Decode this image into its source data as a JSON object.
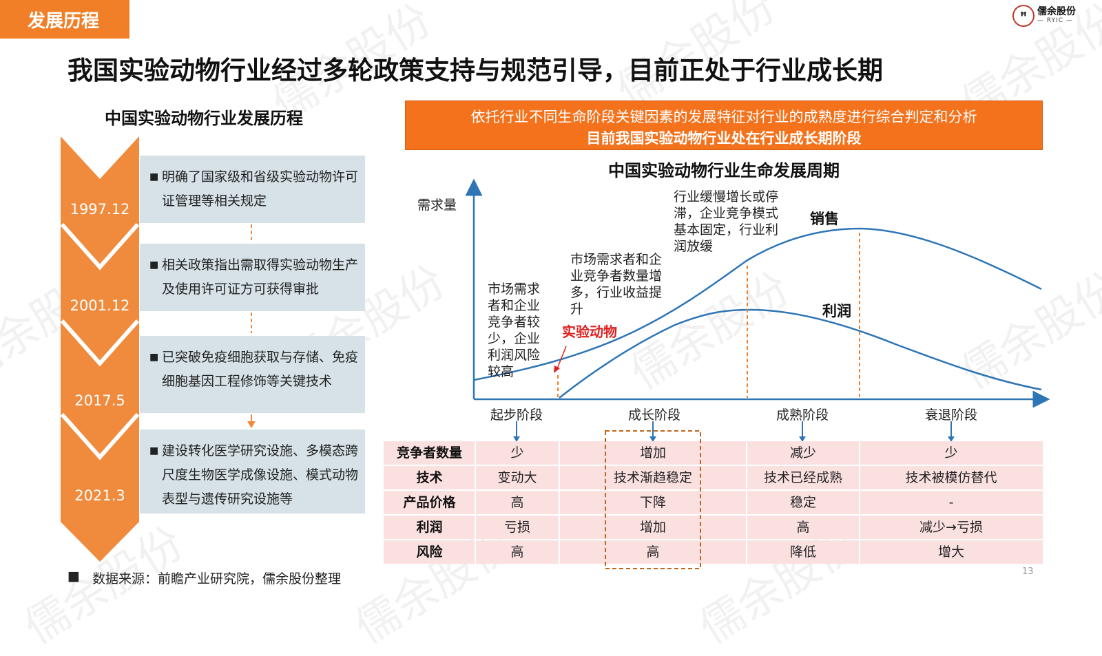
{
  "header": {
    "section_tag": "发展历程",
    "title": "我国实验动物行业经过多轮政策支持与规范引导，目前正处于行业成长期",
    "logo_name": "儒余股份",
    "logo_sub": "— RYIC —"
  },
  "watermark": "儒余股份",
  "timeline": {
    "title": "中国实验动物行业发展历程",
    "events": [
      {
        "date": "1997.12",
        "text": "明确了国家级和省级实验动物许可证管理等相关规定"
      },
      {
        "date": "2001.12",
        "text": "相关政策指出需取得实验动物生产及使用许可证方可获得审批"
      },
      {
        "date": "2017.5",
        "text": "已突破免疫细胞获取与存储、免疫细胞基因工程修饰等关键技术"
      },
      {
        "date": "2021.3",
        "text": "建设转化医学研究设施、多模态跨尺度生物医学成像设施、模式动物表型与遗传研究设施等"
      }
    ]
  },
  "banner": {
    "line1": "依托行业不同生命阶段关键因素的发展特征对行业的成熟度进行综合判定和分析",
    "line2": "目前我国实验动物行业处在行业成长期阶段"
  },
  "lifecycle": {
    "title": "中国实验动物行业生命发展周期",
    "y_axis_label": "需求量",
    "curve_labels": {
      "sales": "销售",
      "profit": "利润",
      "marker": "实验动物"
    },
    "annotations": {
      "start": "市场需求者和企业竞争者较少，企业利润风险较高",
      "growth": "市场需求者和企业竞争者数量增多，行业收益提升",
      "mature": "行业缓慢增长或停滞，企业竞争模式基本固定，行业利润放缓"
    },
    "stages": [
      "起步阶段",
      "成长阶段",
      "成熟阶段",
      "衰退阶段"
    ],
    "rows": [
      {
        "label": "竞争者数量",
        "cells": [
          "少",
          "增加",
          "减少",
          "少"
        ]
      },
      {
        "label": "技术",
        "cells": [
          "变动大",
          "技术渐趋稳定",
          "技术已经成熟",
          "技术被模仿替代"
        ]
      },
      {
        "label": "产品价格",
        "cells": [
          "高",
          "下降",
          "稳定",
          "-"
        ]
      },
      {
        "label": "利润",
        "cells": [
          "亏损",
          "增加",
          "高",
          "减少→亏损"
        ]
      },
      {
        "label": "风险",
        "cells": [
          "高",
          "高",
          "降低",
          "增大"
        ]
      }
    ]
  },
  "footer": {
    "bullet": "■",
    "source": "数据来源：前瞻产业研究院，儒余股份整理",
    "page": "13"
  },
  "colors": {
    "orange": "#f07f28",
    "banner": "#f4721c",
    "blue": "#2e75b6",
    "box": "#d6e2e8",
    "row": "#fbe0e0",
    "red": "#e02020"
  }
}
